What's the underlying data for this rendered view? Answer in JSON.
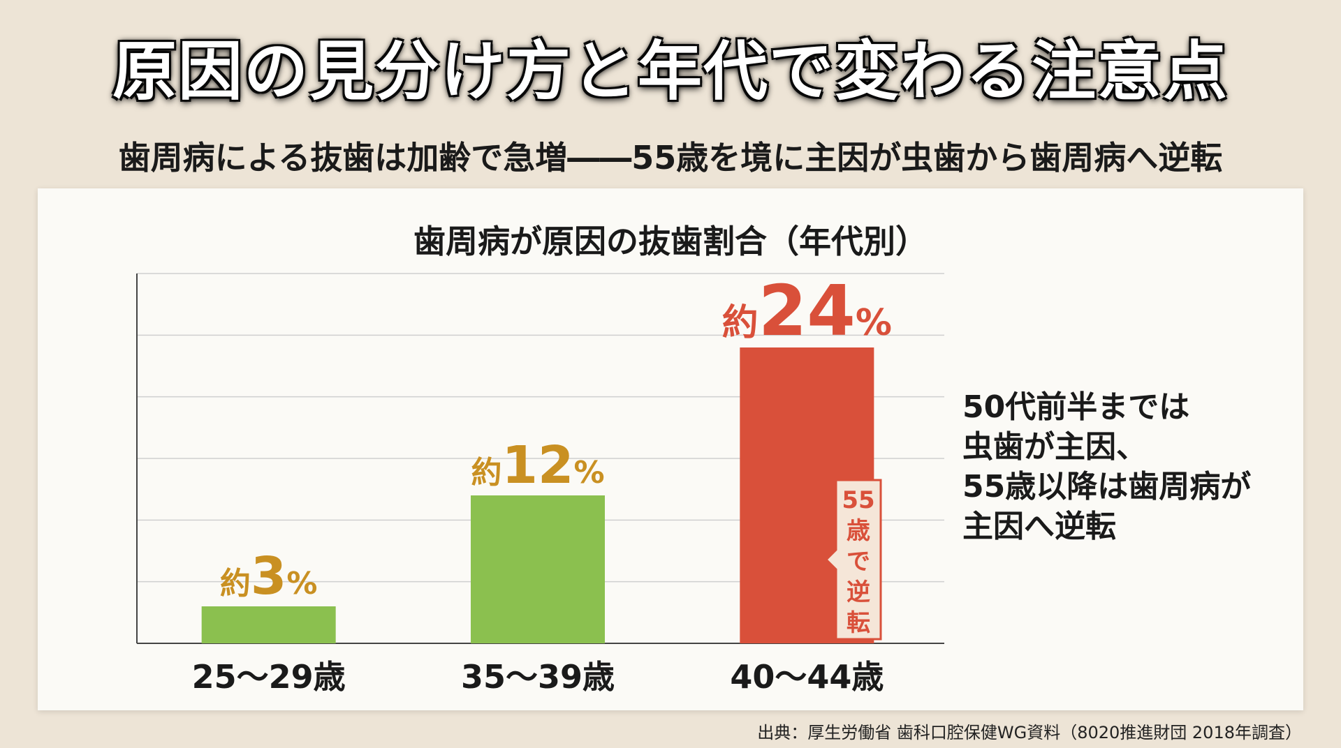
{
  "title": "原因の見分け方と年代で変わる注意点",
  "subtitle": "歯周病による抜歯は加齢で急増――55歳を境に主因が虫歯から歯周病へ逆転",
  "source": "出典：厚生労働省 歯科口腔保健WG資料（8020推進財団 2018年調査）",
  "side_note": [
    "50代前半までは",
    "虫歯が主因、",
    "55歳以降は歯周病が",
    "主因へ逆転"
  ],
  "callout": [
    "55",
    "歳",
    "で",
    "逆",
    "転"
  ],
  "colors": {
    "green": "#8bc04f",
    "red": "#d9503a",
    "gold": "#c99022",
    "grid": "#cfcfcf",
    "callout_bg": "#f5e6d8"
  },
  "chart_data": {
    "type": "bar",
    "title": "歯周病が原因の抜歯割合（年代別）",
    "categories": [
      "25〜29歳",
      "35〜39歳",
      "40〜44歳"
    ],
    "values": [
      3,
      12,
      24
    ],
    "label_prefix": "約",
    "label_suffix": "%",
    "ylim": [
      0,
      30
    ],
    "grid": true,
    "bar_colors": [
      "green",
      "green",
      "red"
    ],
    "label_colors": [
      "gold",
      "gold",
      "red"
    ]
  }
}
